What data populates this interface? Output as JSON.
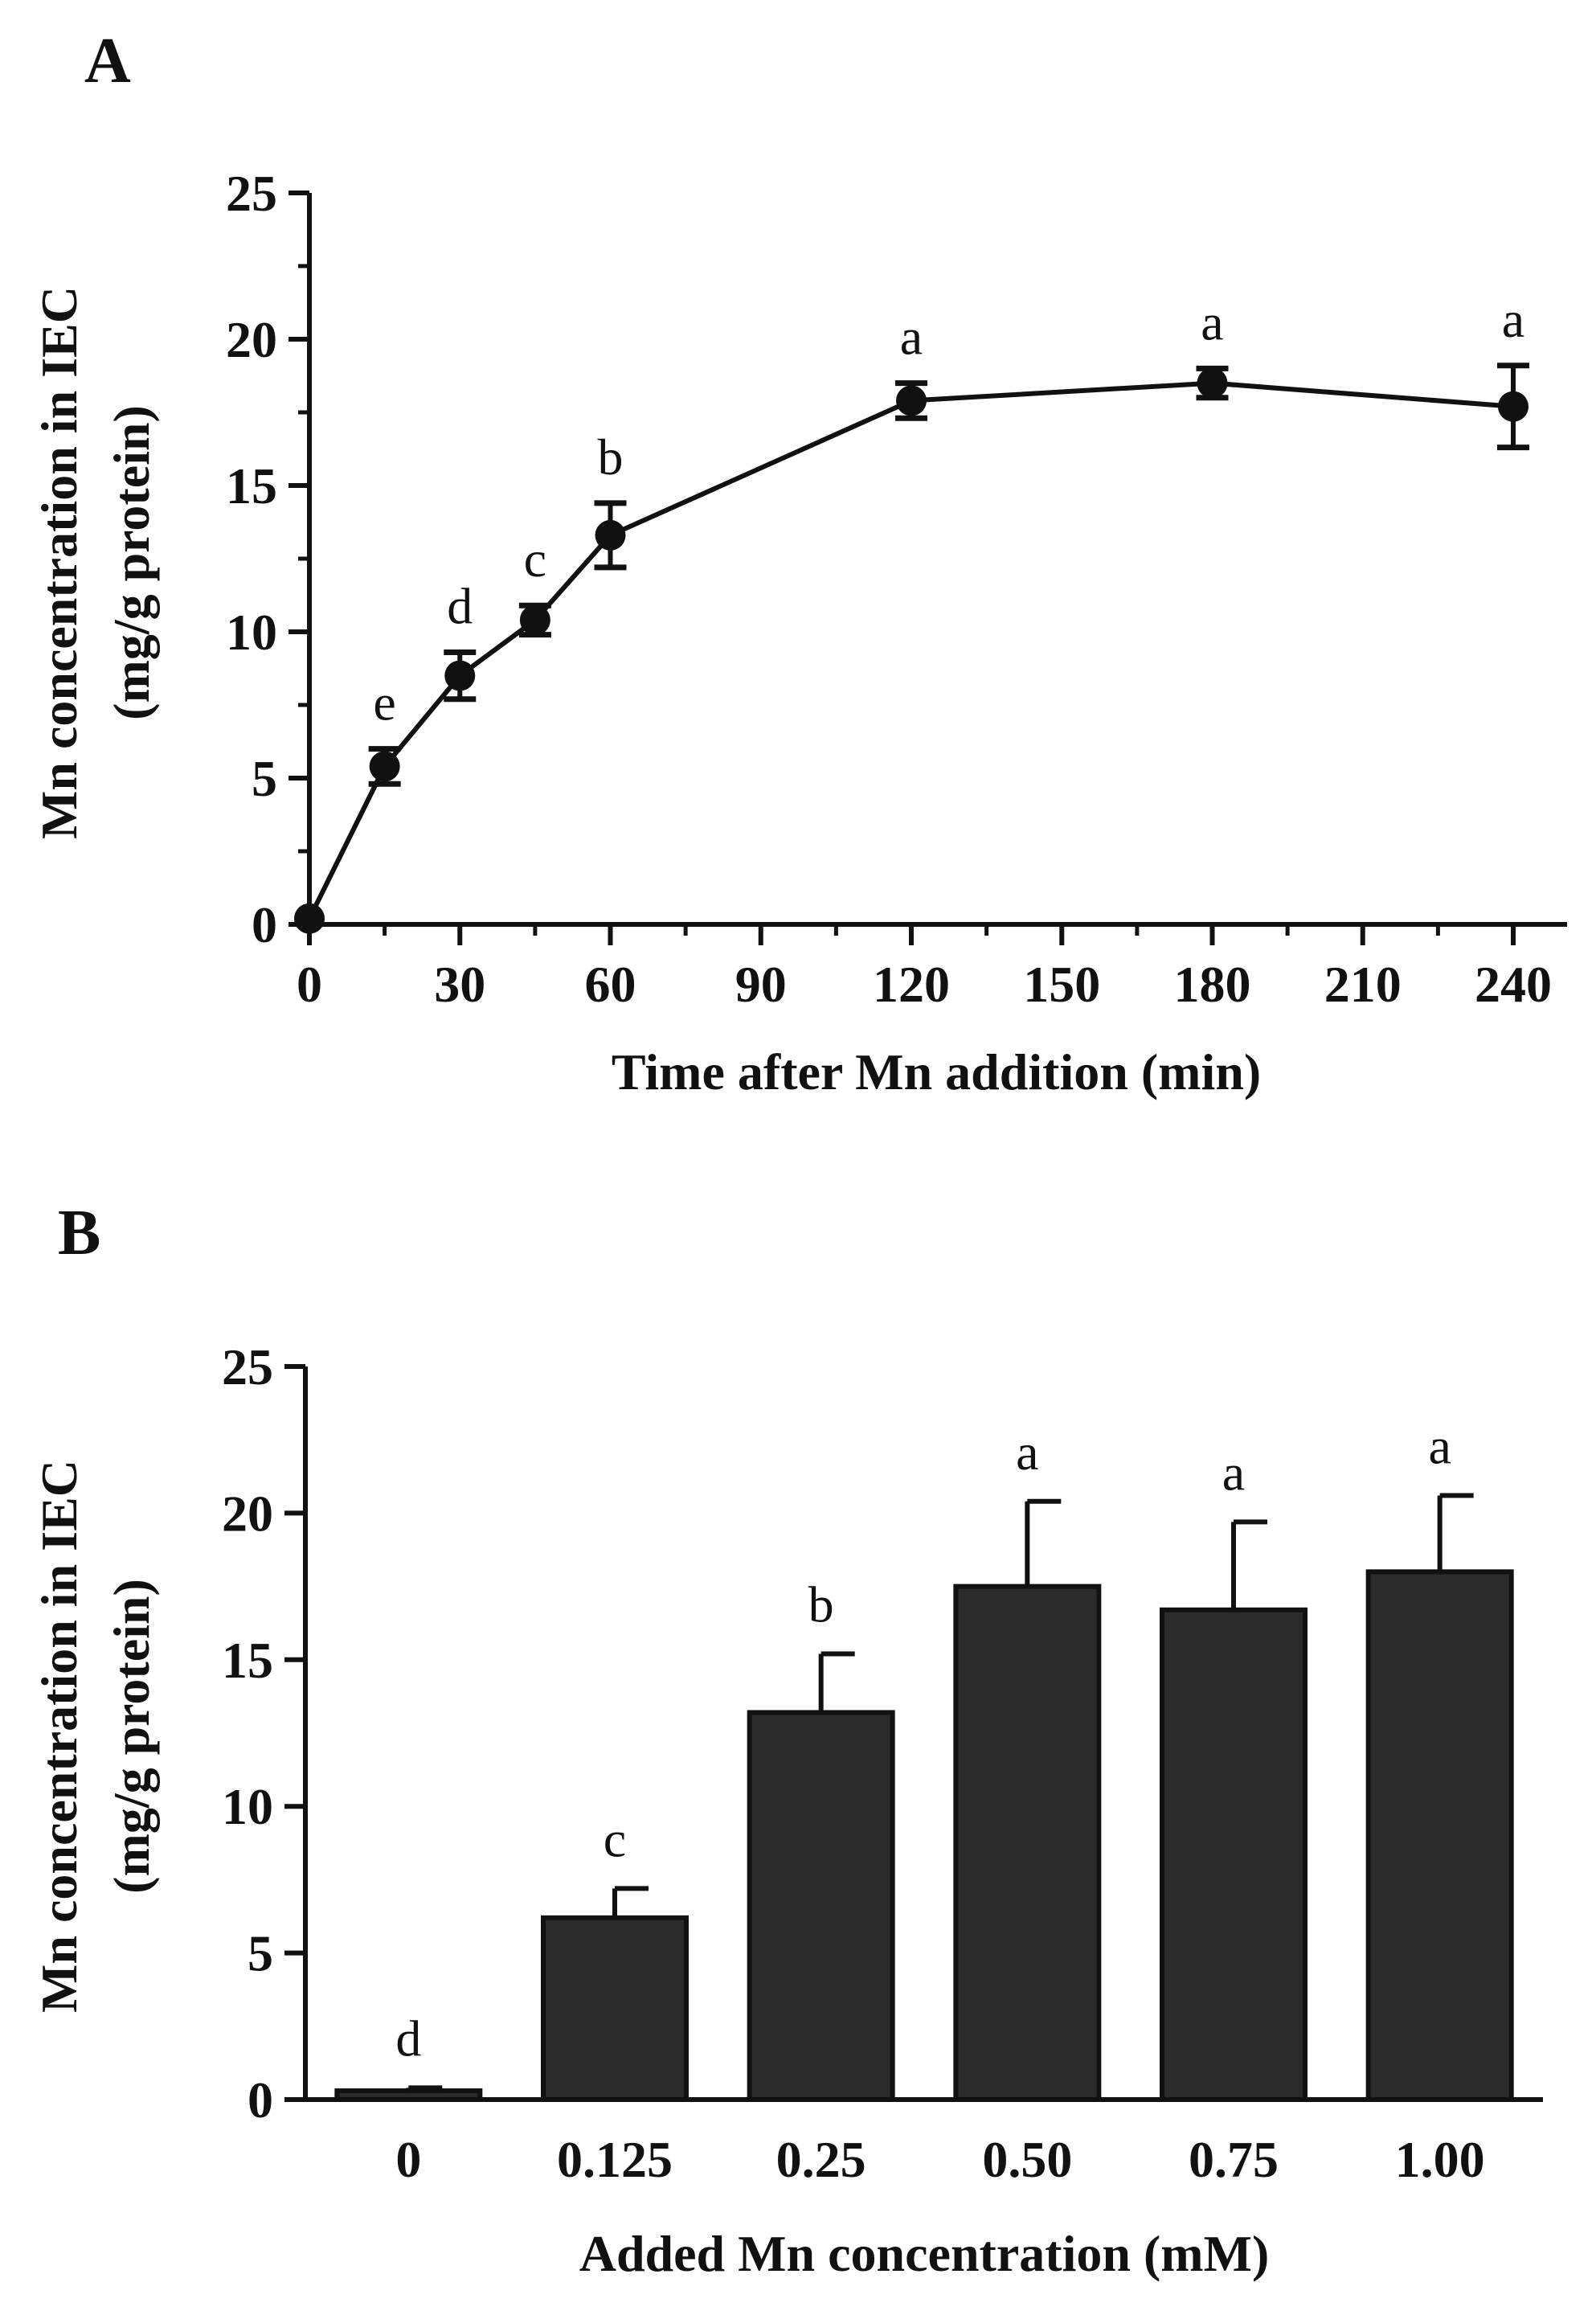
{
  "colors": {
    "ink": "#111111",
    "bar_fill": "#2b2b2b",
    "background": "#ffffff"
  },
  "chart_data": [
    {
      "panel": "A",
      "type": "line",
      "xlabel": "Time after Mn addition (min)",
      "ylabel_line1": "Mn concentration in IEC",
      "ylabel_line2": "(mg/g protein)",
      "xlim": [
        0,
        250
      ],
      "ylim": [
        0,
        25
      ],
      "xticks": [
        0,
        30,
        60,
        90,
        120,
        150,
        180,
        210,
        240
      ],
      "yticks": [
        0,
        5,
        10,
        15,
        20,
        25
      ],
      "grid": false,
      "series": [
        {
          "name": "Mn concentration",
          "points": [
            {
              "x": 0,
              "y": 0.2,
              "err": 0.1,
              "label": ""
            },
            {
              "x": 15,
              "y": 5.4,
              "err": 0.6,
              "label": "e"
            },
            {
              "x": 30,
              "y": 8.5,
              "err": 0.8,
              "label": "d"
            },
            {
              "x": 45,
              "y": 10.4,
              "err": 0.5,
              "label": "c"
            },
            {
              "x": 60,
              "y": 13.3,
              "err": 1.1,
              "label": "b"
            },
            {
              "x": 120,
              "y": 17.9,
              "err": 0.6,
              "label": "a"
            },
            {
              "x": 180,
              "y": 18.5,
              "err": 0.5,
              "label": "a"
            },
            {
              "x": 240,
              "y": 17.7,
              "err": 1.4,
              "label": "a"
            }
          ]
        }
      ]
    },
    {
      "panel": "B",
      "type": "bar",
      "xlabel": "Added Mn concentration (mM)",
      "ylabel_line1": "Mn concentration in IEC",
      "ylabel_line2": "(mg/g protein)",
      "ylim": [
        0,
        25
      ],
      "yticks": [
        0,
        5,
        10,
        15,
        20,
        25
      ],
      "grid": false,
      "categories": [
        "0",
        "0.125",
        "0.25",
        "0.50",
        "0.75",
        "1.00"
      ],
      "values": [
        0.3,
        6.2,
        13.2,
        17.5,
        16.7,
        18.0
      ],
      "errors": [
        0.1,
        1.0,
        2.0,
        2.9,
        3.0,
        2.6
      ],
      "labels": [
        "d",
        "c",
        "b",
        "a",
        "a",
        "a"
      ]
    }
  ]
}
